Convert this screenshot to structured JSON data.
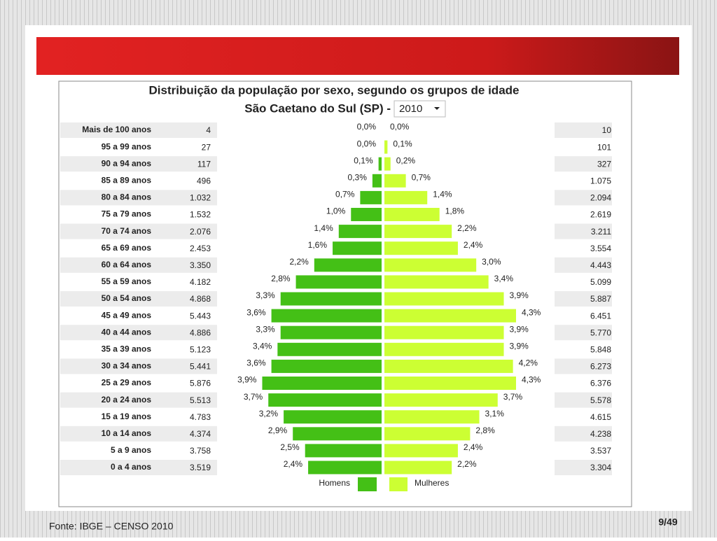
{
  "chart_data": {
    "type": "pyramid",
    "title": "Distribuição da população por sexo, segundo os grupos de idade",
    "subtitle": "São Caetano do Sul (SP) -",
    "year": "2010",
    "source": "Fonte: IBGE – CENSO 2010",
    "page": "9/49",
    "categories": [
      "Mais de 100 anos",
      "95 a 99 anos",
      "90 a 94 anos",
      "85 a 89 anos",
      "80 a 84 anos",
      "75 a 79 anos",
      "70 a 74 anos",
      "65 a 69 anos",
      "60 a 64 anos",
      "55 a 59 anos",
      "50 a 54 anos",
      "45 a 49 anos",
      "40 a 44 anos",
      "35 a 39 anos",
      "30 a 34 anos",
      "25 a 29 anos",
      "20 a 24 anos",
      "15 a 19 anos",
      "10 a 14 anos",
      "5 a 9 anos",
      "0 a 4 anos"
    ],
    "series": [
      {
        "name": "Homens",
        "color": "#44c016",
        "values": [
          0.0,
          0.0,
          0.1,
          0.3,
          0.7,
          1.0,
          1.4,
          1.6,
          2.2,
          2.8,
          3.3,
          3.6,
          3.3,
          3.4,
          3.6,
          3.9,
          3.7,
          3.2,
          2.9,
          2.5,
          2.4
        ],
        "value_labels": [
          "0,0%",
          "0,0%",
          "0,1%",
          "0,3%",
          "0,7%",
          "1,0%",
          "1,4%",
          "1,6%",
          "2,2%",
          "2,8%",
          "3,3%",
          "3,6%",
          "3,3%",
          "3,4%",
          "3,6%",
          "3,9%",
          "3,7%",
          "3,2%",
          "2,9%",
          "2,5%",
          "2,4%"
        ],
        "counts": [
          "4",
          "27",
          "117",
          "496",
          "1.032",
          "1.532",
          "2.076",
          "2.453",
          "3.350",
          "4.182",
          "4.868",
          "5.443",
          "4.886",
          "5.123",
          "5.441",
          "5.876",
          "5.513",
          "4.783",
          "4.374",
          "3.758",
          "3.519"
        ]
      },
      {
        "name": "Mulheres",
        "color": "#ccff33",
        "values": [
          0.0,
          0.1,
          0.2,
          0.7,
          1.4,
          1.8,
          2.2,
          2.4,
          3.0,
          3.4,
          3.9,
          4.3,
          3.9,
          3.9,
          4.2,
          4.3,
          3.7,
          3.1,
          2.8,
          2.4,
          2.2
        ],
        "value_labels": [
          "0,0%",
          "0,1%",
          "0,2%",
          "0,7%",
          "1,4%",
          "1,8%",
          "2,2%",
          "2,4%",
          "3,0%",
          "3,4%",
          "3,9%",
          "4,3%",
          "3,9%",
          "3,9%",
          "4,2%",
          "4,3%",
          "3,7%",
          "3,1%",
          "2,8%",
          "2,4%",
          "2,2%"
        ],
        "counts": [
          "10",
          "101",
          "327",
          "1.075",
          "2.094",
          "2.619",
          "3.211",
          "3.554",
          "4.443",
          "5.099",
          "5.887",
          "6.451",
          "5.770",
          "5.848",
          "6.273",
          "6.376",
          "5.578",
          "4.615",
          "4.238",
          "3.537",
          "3.304"
        ]
      }
    ]
  }
}
